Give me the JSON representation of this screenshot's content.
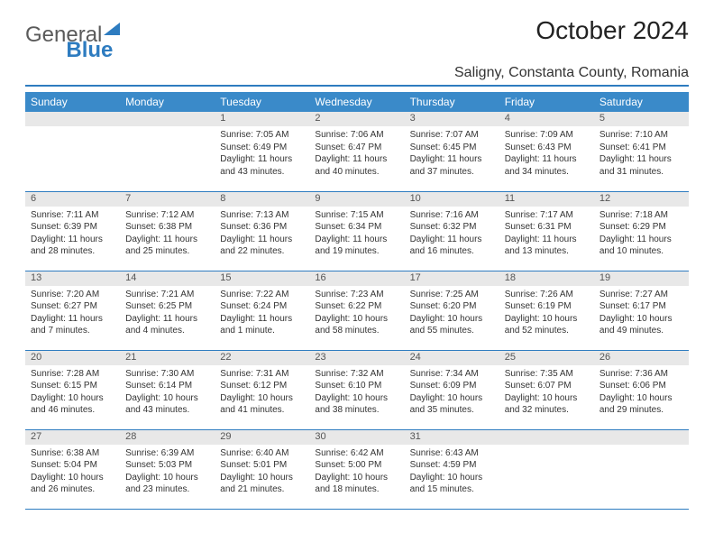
{
  "logo": {
    "text_gray": "General",
    "text_blue": "Blue"
  },
  "title": "October 2024",
  "location": "Saligny, Constanta County, Romania",
  "colors": {
    "header_bg": "#3a8ac9",
    "header_text": "#ffffff",
    "border": "#2e7cc0",
    "daynum_bg": "#e8e8e8",
    "logo_blue": "#2e7cc0",
    "logo_gray": "#5a5a5a"
  },
  "weekdays": [
    "Sunday",
    "Monday",
    "Tuesday",
    "Wednesday",
    "Thursday",
    "Friday",
    "Saturday"
  ],
  "weeks": [
    [
      {
        "num": "",
        "lines": []
      },
      {
        "num": "",
        "lines": []
      },
      {
        "num": "1",
        "lines": [
          "Sunrise: 7:05 AM",
          "Sunset: 6:49 PM",
          "Daylight: 11 hours",
          "and 43 minutes."
        ]
      },
      {
        "num": "2",
        "lines": [
          "Sunrise: 7:06 AM",
          "Sunset: 6:47 PM",
          "Daylight: 11 hours",
          "and 40 minutes."
        ]
      },
      {
        "num": "3",
        "lines": [
          "Sunrise: 7:07 AM",
          "Sunset: 6:45 PM",
          "Daylight: 11 hours",
          "and 37 minutes."
        ]
      },
      {
        "num": "4",
        "lines": [
          "Sunrise: 7:09 AM",
          "Sunset: 6:43 PM",
          "Daylight: 11 hours",
          "and 34 minutes."
        ]
      },
      {
        "num": "5",
        "lines": [
          "Sunrise: 7:10 AM",
          "Sunset: 6:41 PM",
          "Daylight: 11 hours",
          "and 31 minutes."
        ]
      }
    ],
    [
      {
        "num": "6",
        "lines": [
          "Sunrise: 7:11 AM",
          "Sunset: 6:39 PM",
          "Daylight: 11 hours",
          "and 28 minutes."
        ]
      },
      {
        "num": "7",
        "lines": [
          "Sunrise: 7:12 AM",
          "Sunset: 6:38 PM",
          "Daylight: 11 hours",
          "and 25 minutes."
        ]
      },
      {
        "num": "8",
        "lines": [
          "Sunrise: 7:13 AM",
          "Sunset: 6:36 PM",
          "Daylight: 11 hours",
          "and 22 minutes."
        ]
      },
      {
        "num": "9",
        "lines": [
          "Sunrise: 7:15 AM",
          "Sunset: 6:34 PM",
          "Daylight: 11 hours",
          "and 19 minutes."
        ]
      },
      {
        "num": "10",
        "lines": [
          "Sunrise: 7:16 AM",
          "Sunset: 6:32 PM",
          "Daylight: 11 hours",
          "and 16 minutes."
        ]
      },
      {
        "num": "11",
        "lines": [
          "Sunrise: 7:17 AM",
          "Sunset: 6:31 PM",
          "Daylight: 11 hours",
          "and 13 minutes."
        ]
      },
      {
        "num": "12",
        "lines": [
          "Sunrise: 7:18 AM",
          "Sunset: 6:29 PM",
          "Daylight: 11 hours",
          "and 10 minutes."
        ]
      }
    ],
    [
      {
        "num": "13",
        "lines": [
          "Sunrise: 7:20 AM",
          "Sunset: 6:27 PM",
          "Daylight: 11 hours",
          "and 7 minutes."
        ]
      },
      {
        "num": "14",
        "lines": [
          "Sunrise: 7:21 AM",
          "Sunset: 6:25 PM",
          "Daylight: 11 hours",
          "and 4 minutes."
        ]
      },
      {
        "num": "15",
        "lines": [
          "Sunrise: 7:22 AM",
          "Sunset: 6:24 PM",
          "Daylight: 11 hours",
          "and 1 minute."
        ]
      },
      {
        "num": "16",
        "lines": [
          "Sunrise: 7:23 AM",
          "Sunset: 6:22 PM",
          "Daylight: 10 hours",
          "and 58 minutes."
        ]
      },
      {
        "num": "17",
        "lines": [
          "Sunrise: 7:25 AM",
          "Sunset: 6:20 PM",
          "Daylight: 10 hours",
          "and 55 minutes."
        ]
      },
      {
        "num": "18",
        "lines": [
          "Sunrise: 7:26 AM",
          "Sunset: 6:19 PM",
          "Daylight: 10 hours",
          "and 52 minutes."
        ]
      },
      {
        "num": "19",
        "lines": [
          "Sunrise: 7:27 AM",
          "Sunset: 6:17 PM",
          "Daylight: 10 hours",
          "and 49 minutes."
        ]
      }
    ],
    [
      {
        "num": "20",
        "lines": [
          "Sunrise: 7:28 AM",
          "Sunset: 6:15 PM",
          "Daylight: 10 hours",
          "and 46 minutes."
        ]
      },
      {
        "num": "21",
        "lines": [
          "Sunrise: 7:30 AM",
          "Sunset: 6:14 PM",
          "Daylight: 10 hours",
          "and 43 minutes."
        ]
      },
      {
        "num": "22",
        "lines": [
          "Sunrise: 7:31 AM",
          "Sunset: 6:12 PM",
          "Daylight: 10 hours",
          "and 41 minutes."
        ]
      },
      {
        "num": "23",
        "lines": [
          "Sunrise: 7:32 AM",
          "Sunset: 6:10 PM",
          "Daylight: 10 hours",
          "and 38 minutes."
        ]
      },
      {
        "num": "24",
        "lines": [
          "Sunrise: 7:34 AM",
          "Sunset: 6:09 PM",
          "Daylight: 10 hours",
          "and 35 minutes."
        ]
      },
      {
        "num": "25",
        "lines": [
          "Sunrise: 7:35 AM",
          "Sunset: 6:07 PM",
          "Daylight: 10 hours",
          "and 32 minutes."
        ]
      },
      {
        "num": "26",
        "lines": [
          "Sunrise: 7:36 AM",
          "Sunset: 6:06 PM",
          "Daylight: 10 hours",
          "and 29 minutes."
        ]
      }
    ],
    [
      {
        "num": "27",
        "lines": [
          "Sunrise: 6:38 AM",
          "Sunset: 5:04 PM",
          "Daylight: 10 hours",
          "and 26 minutes."
        ]
      },
      {
        "num": "28",
        "lines": [
          "Sunrise: 6:39 AM",
          "Sunset: 5:03 PM",
          "Daylight: 10 hours",
          "and 23 minutes."
        ]
      },
      {
        "num": "29",
        "lines": [
          "Sunrise: 6:40 AM",
          "Sunset: 5:01 PM",
          "Daylight: 10 hours",
          "and 21 minutes."
        ]
      },
      {
        "num": "30",
        "lines": [
          "Sunrise: 6:42 AM",
          "Sunset: 5:00 PM",
          "Daylight: 10 hours",
          "and 18 minutes."
        ]
      },
      {
        "num": "31",
        "lines": [
          "Sunrise: 6:43 AM",
          "Sunset: 4:59 PM",
          "Daylight: 10 hours",
          "and 15 minutes."
        ]
      },
      {
        "num": "",
        "lines": []
      },
      {
        "num": "",
        "lines": []
      }
    ]
  ]
}
